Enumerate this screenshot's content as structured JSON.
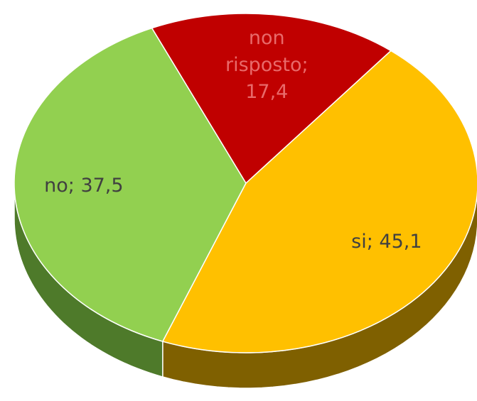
{
  "chart_data": {
    "type": "pie3d",
    "categories": [
      "si",
      "no",
      "non risposto"
    ],
    "values": [
      45.1,
      37.5,
      17.4
    ],
    "value_labels": [
      "si; 45,1",
      "no; 37,5",
      "non risposto; 17,4"
    ],
    "colors": [
      "#ffc000",
      "#92d050",
      "#c00000"
    ],
    "side_colors": [
      "#7f6000",
      "#4e7a2a",
      "#7a0000"
    ]
  }
}
